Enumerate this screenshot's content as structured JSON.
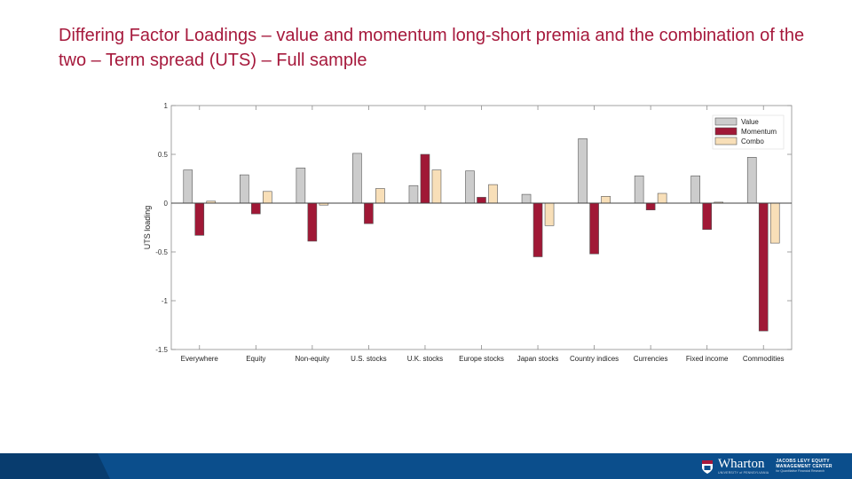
{
  "title": "Differing Factor Loadings – value and momentum long-short premia and the combination of the two – Term spread (UTS) – Full sample",
  "chart_data": {
    "type": "bar",
    "ylabel": "UTS loading",
    "xlabel": "",
    "ylim": [
      -1.5,
      1
    ],
    "yticks": [
      1,
      0.5,
      0,
      -0.5,
      -1,
      -1.5
    ],
    "ytick_labels": [
      "1",
      "0.5",
      "0",
      "-0.5",
      "-1",
      "-1.5"
    ],
    "grid": false,
    "legend_position": "top-right",
    "categories": [
      "Everywhere",
      "Equity",
      "Non-equity",
      "U.S. stocks",
      "U.K. stocks",
      "Europe stocks",
      "Japan stocks",
      "Country indices",
      "Currencies",
      "Fixed income",
      "Commodities"
    ],
    "series": [
      {
        "name": "Value",
        "color": "#cccccc",
        "values": [
          0.34,
          0.29,
          0.36,
          0.51,
          0.18,
          0.33,
          0.09,
          0.66,
          0.28,
          0.28,
          0.47
        ]
      },
      {
        "name": "Momentum",
        "color": "#a01836",
        "values": [
          -0.33,
          -0.11,
          -0.39,
          -0.21,
          0.5,
          0.06,
          -0.55,
          -0.52,
          -0.07,
          -0.27,
          -1.31
        ]
      },
      {
        "name": "Combo",
        "color": "#f8dfb8",
        "values": [
          0.02,
          0.12,
          -0.02,
          0.15,
          0.34,
          0.19,
          -0.23,
          0.07,
          0.1,
          0.01,
          -0.41
        ]
      }
    ]
  },
  "footer": {
    "logo_text": "Wharton",
    "logo_subtext": "UNIVERSITY of PENNSYLVANIA",
    "center_name": "JACOBS LEVY EQUITY\nMANAGEMENT CENTER",
    "center_subtext": "for Quantitative Financial Research",
    "colors": {
      "band": "#0b4e8c",
      "shade": "#083c6e"
    }
  }
}
